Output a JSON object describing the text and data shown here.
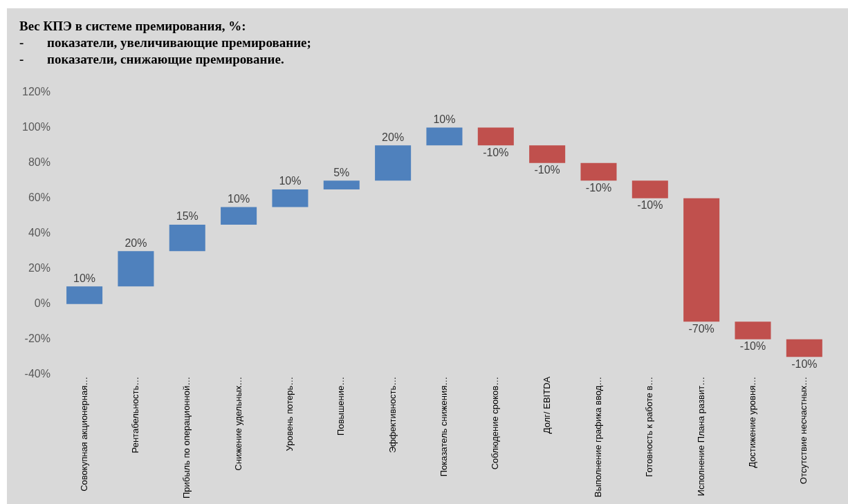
{
  "chart_data": {
    "type": "bar",
    "title": "Вес КПЭ в системе премирования, %:",
    "subtitle": "-\tпоказатели, увеличивающие премирование;\n-\tпоказатели, снижающие премирование.",
    "categories": [
      "Совокупная акционерная…",
      "Рентабельность…",
      "Прибыль по операционной…",
      "Снижение удельных…",
      "Уровень потерь…",
      "Повышение…",
      "Эффективность…",
      "Показатель снижения…",
      "Соблюдение сроков…",
      "Долг/ EBITDA",
      "Выполнение графика ввод…",
      "Готовность к работе в…",
      "Исполнение Плана развит…",
      "Достижение уровня…",
      "Отсутствие несчастных…"
    ],
    "values": [
      10,
      20,
      15,
      10,
      10,
      5,
      20,
      10,
      -10,
      -10,
      -10,
      -10,
      -70,
      -10,
      -10
    ],
    "base": [
      0,
      10,
      30,
      45,
      55,
      65,
      70,
      90,
      100,
      90,
      80,
      70,
      60,
      -10,
      -20
    ],
    "colors": [
      "#4f81bd",
      "#4f81bd",
      "#4f81bd",
      "#4f81bd",
      "#4f81bd",
      "#4f81bd",
      "#4f81bd",
      "#4f81bd",
      "#c0504d",
      "#c0504d",
      "#c0504d",
      "#c0504d",
      "#c0504d",
      "#c0504d",
      "#c0504d"
    ],
    "value_labels": [
      "10%",
      "20%",
      "15%",
      "10%",
      "10%",
      "5%",
      "20%",
      "10%",
      "-10%",
      "-10%",
      "-10%",
      "-10%",
      "-70%",
      "-10%",
      "-10%"
    ],
    "ylim": [
      -40,
      120
    ],
    "yticks": [
      {
        "value": -40,
        "label": "-40%"
      },
      {
        "value": -20,
        "label": "-20%"
      },
      {
        "value": 0,
        "label": "0%"
      },
      {
        "value": 20,
        "label": "20%"
      },
      {
        "value": 40,
        "label": "40%"
      },
      {
        "value": 60,
        "label": "60%"
      },
      {
        "value": 80,
        "label": "80%"
      },
      {
        "value": 100,
        "label": "100%"
      },
      {
        "value": 120,
        "label": "120%"
      }
    ],
    "grid": false,
    "legend": false
  }
}
